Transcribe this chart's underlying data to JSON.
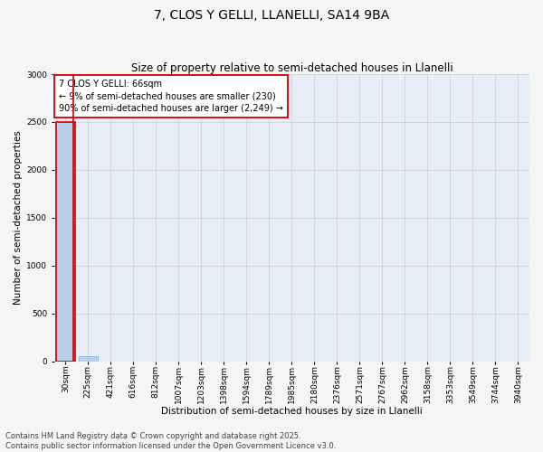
{
  "title": "7, CLOS Y GELLI, LLANELLI, SA14 9BA",
  "subtitle": "Size of property relative to semi-detached houses in Llanelli",
  "xlabel": "Distribution of semi-detached houses by size in Llanelli",
  "ylabel": "Number of semi-detached properties",
  "annotation_title": "7 CLOS Y GELLI: 66sqm",
  "annotation_line1": "← 9% of semi-detached houses are smaller (230)",
  "annotation_line2": "90% of semi-detached houses are larger (2,249) →",
  "footer_line1": "Contains HM Land Registry data © Crown copyright and database right 2025.",
  "footer_line2": "Contains public sector information licensed under the Open Government Licence v3.0.",
  "bin_labels": [
    "30sqm",
    "225sqm",
    "421sqm",
    "616sqm",
    "812sqm",
    "1007sqm",
    "1203sqm",
    "1398sqm",
    "1594sqm",
    "1789sqm",
    "1985sqm",
    "2180sqm",
    "2376sqm",
    "2571sqm",
    "2767sqm",
    "2962sqm",
    "3158sqm",
    "3353sqm",
    "3549sqm",
    "3744sqm",
    "3940sqm"
  ],
  "bar_heights": [
    2500,
    50,
    0,
    0,
    0,
    0,
    0,
    0,
    0,
    0,
    0,
    0,
    0,
    0,
    0,
    0,
    0,
    0,
    0,
    0,
    0
  ],
  "bar_color": "#b8d0e8",
  "bar_edge_color": "#7aafd4",
  "highlight_edge_color": "#cc0000",
  "ylim": [
    0,
    3000
  ],
  "yticks": [
    0,
    500,
    1000,
    1500,
    2000,
    2500,
    3000
  ],
  "grid_color": "#cccccc",
  "plot_bg_color": "#e8eef8",
  "fig_bg_color": "#f5f5f5",
  "annotation_box_color": "#ffffff",
  "annotation_box_edge": "#cc0000",
  "title_fontsize": 10,
  "subtitle_fontsize": 8.5,
  "axis_label_fontsize": 7.5,
  "tick_fontsize": 6.5,
  "annotation_fontsize": 7,
  "footer_fontsize": 6
}
